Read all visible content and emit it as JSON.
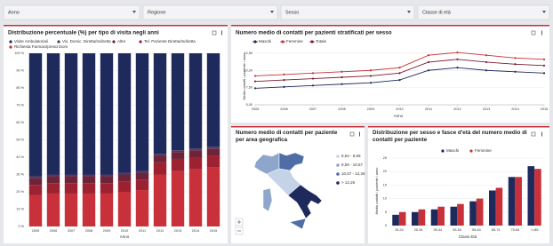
{
  "filters": [
    "Anno",
    "Regione",
    "Sesso",
    "Classe di età"
  ],
  "chart_data": [
    {
      "type": "stacked-bar",
      "title": "Distribuzione percentuale (%) per tipo di visita negli anni",
      "x_label": "Anno",
      "categories": [
        "2005",
        "2006",
        "2007",
        "2008",
        "2009",
        "2010",
        "2011",
        "2012",
        "2013",
        "2014",
        "2015"
      ],
      "series": [
        {
          "name": "Visite Ambulatoriali",
          "color": "#1f2a5c",
          "values": [
            71,
            70,
            70,
            70,
            70,
            69,
            68,
            58,
            56,
            55,
            54
          ]
        },
        {
          "name": "Vis. Domic. Diretta/Indiretta",
          "color": "#4b3a6a",
          "values": [
            1,
            1,
            1,
            1,
            1,
            1,
            1,
            1,
            1,
            1,
            1
          ]
        },
        {
          "name": "Altre",
          "color": "#6e2338",
          "values": [
            4,
            4,
            4,
            4,
            4,
            4,
            4,
            4,
            4,
            4,
            4
          ]
        },
        {
          "name": "Tel. Paziente Diretta/Indiretta",
          "color": "#9c2231",
          "values": [
            6,
            6,
            6,
            6,
            6,
            6,
            6,
            7,
            7,
            7,
            7
          ]
        },
        {
          "name": "Richiesta Farmaci/prescrizioni",
          "color": "#c8313a",
          "values": [
            18,
            19,
            19,
            19,
            19,
            20,
            21,
            30,
            32,
            33,
            34
          ]
        }
      ],
      "ylim": [
        0,
        100
      ],
      "yticks": [
        {
          "value": 0,
          "label": "0 %"
        },
        {
          "value": 10,
          "label": "10 %"
        },
        {
          "value": 20,
          "label": "20 %"
        },
        {
          "value": 30,
          "label": "30 %"
        },
        {
          "value": 40,
          "label": "40 %"
        },
        {
          "value": 50,
          "label": "50 %"
        },
        {
          "value": 60,
          "label": "60 %"
        },
        {
          "value": 70,
          "label": "70 %"
        },
        {
          "value": 80,
          "label": "80 %"
        },
        {
          "value": 90,
          "label": "90 %"
        },
        {
          "value": 100,
          "label": "100 %"
        }
      ],
      "grid": true
    },
    {
      "type": "line",
      "title": "Numero medio di contatti per pazienti stratificati per sesso",
      "x_label": "Anno",
      "y_label": "Media contatti / paziente / anno",
      "x": [
        2005,
        2006,
        2007,
        2008,
        2009,
        2010,
        2011,
        2012,
        2013,
        2014,
        2015
      ],
      "xlim": [
        2005,
        2015
      ],
      "xticks": [
        2005,
        2006,
        2007,
        2008,
        2009,
        2010,
        2011,
        2012,
        2013,
        2014,
        2015
      ],
      "series": [
        {
          "name": "Maschi",
          "color": "#1f2a5c",
          "values": [
            7.4,
            7.6,
            7.8,
            8.0,
            8.2,
            8.6,
            10.0,
            10.4,
            10.0,
            9.8,
            9.6
          ]
        },
        {
          "name": "Femmine",
          "color": "#c8313a",
          "values": [
            9.2,
            9.4,
            9.6,
            9.8,
            10.0,
            10.4,
            12.2,
            12.6,
            12.2,
            11.8,
            11.6
          ]
        },
        {
          "name": "Totale",
          "color": "#7a1b30",
          "values": [
            8.4,
            8.6,
            8.8,
            9.0,
            9.2,
            9.6,
            11.2,
            11.6,
            11.2,
            10.9,
            10.7
          ]
        }
      ],
      "ylim": [
        5,
        13
      ],
      "yticks": [
        {
          "value": 5,
          "label": "5,00"
        },
        {
          "value": 7.5,
          "label": "7,50"
        },
        {
          "value": 10,
          "label": "10,00"
        },
        {
          "value": 12.5,
          "label": "12,50"
        }
      ],
      "grid": true
    },
    {
      "type": "map",
      "title": "Numero medio di contatti per paziente per area geografica",
      "legend": [
        {
          "label": "8,54 - 9,59",
          "color": "#c5d3e8"
        },
        {
          "label": "9,59 - 10,57",
          "color": "#8fa6cc"
        },
        {
          "label": "10,57 - 12,26",
          "color": "#4f6ea6"
        },
        {
          "label": "> 12,26",
          "color": "#1f2a5c"
        }
      ]
    },
    {
      "type": "grouped-bar",
      "title": "Distribuzione per sesso e fasce d'età del numero medio di contatti per paziente",
      "x_label": "Classi Età",
      "y_label": "Media contatti / paziente / anno",
      "categories": [
        "15-24",
        "25-34",
        "35-44",
        "45-54",
        "55-64",
        "65-74",
        "75-84",
        ">=85"
      ],
      "series": [
        {
          "name": "Maschi",
          "color": "#1f2a5c",
          "values": [
            4,
            5,
            6,
            7,
            9,
            13,
            18,
            22
          ]
        },
        {
          "name": "Femmine",
          "color": "#c8313a",
          "values": [
            5,
            6,
            7,
            8,
            10,
            14,
            18,
            21
          ]
        }
      ],
      "ylim": [
        0,
        25
      ],
      "yticks": [
        0,
        5,
        10,
        15,
        20,
        25
      ],
      "grid": true
    }
  ]
}
